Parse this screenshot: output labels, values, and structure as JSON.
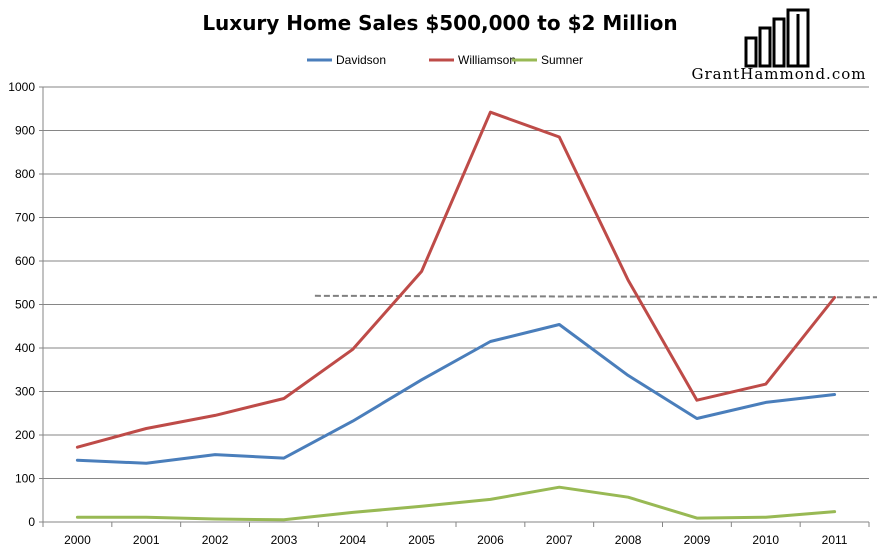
{
  "chart_data": {
    "type": "line",
    "title": "Luxury Home Sales $500,000 to $2 Million",
    "xlabel": "",
    "ylabel": "",
    "categories": [
      "2000",
      "2001",
      "2002",
      "2003",
      "2004",
      "2005",
      "2006",
      "2007",
      "2008",
      "2009",
      "2010",
      "2011"
    ],
    "ylim": [
      0,
      1000
    ],
    "yticks": [
      0,
      100,
      200,
      300,
      400,
      500,
      600,
      700,
      800,
      900,
      1000
    ],
    "grid": true,
    "legend_position": "top-center",
    "series": [
      {
        "name": "Davidson",
        "color": "#4a7ebb",
        "values": [
          142,
          135,
          155,
          147,
          232,
          327,
          415,
          454,
          337,
          238,
          275,
          293
        ]
      },
      {
        "name": "Williamson",
        "color": "#be4b48",
        "values": [
          172,
          215,
          245,
          284,
          397,
          576,
          942,
          885,
          556,
          280,
          317,
          516
        ]
      },
      {
        "name": "Sumner",
        "color": "#98b954",
        "values": [
          11,
          11,
          7,
          5,
          22,
          36,
          52,
          80,
          57,
          9,
          11,
          24
        ]
      }
    ],
    "annotations": [
      {
        "type": "dashed-reference-line",
        "value": 520,
        "from": "2004",
        "to": "2011",
        "color": "#808080"
      }
    ]
  },
  "brand": {
    "name": "GrantHammond.com"
  }
}
